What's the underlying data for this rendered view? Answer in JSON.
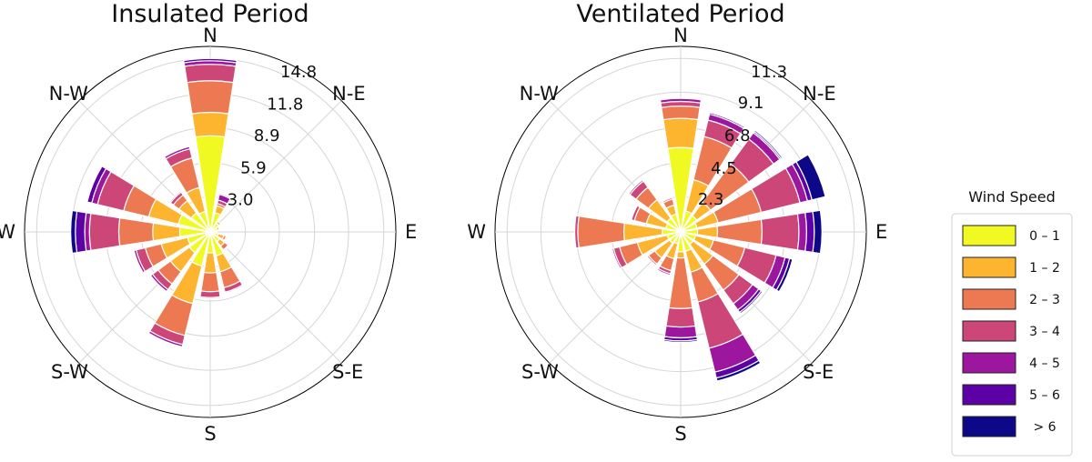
{
  "legend": {
    "title": "Wind Speed",
    "bins": [
      {
        "label": "0 – 1",
        "color": "#f0f921"
      },
      {
        "label": "1 – 2",
        "color": "#fdb42f"
      },
      {
        "label": "2 – 3",
        "color": "#ed7953"
      },
      {
        "label": "3 – 4",
        "color": "#cc4778"
      },
      {
        "label": "4 – 5",
        "color": "#9c179e"
      },
      {
        "label": "5 – 6",
        "color": "#5c01a6"
      },
      {
        "label": "> 6",
        "color": "#0d0887"
      }
    ]
  },
  "chart_data": [
    {
      "type": "windrose",
      "title": "Insulated Period",
      "directions": [
        "N",
        "N-E",
        "E",
        "S-E",
        "S",
        "S-W",
        "W",
        "N-W"
      ],
      "radial_ticks": [
        "3.0",
        "5.9",
        "8.9",
        "11.8",
        "14.8"
      ],
      "rmax": 14.8,
      "sectors": [
        {
          "direction": 0,
          "values": [
            8.2,
            2.0,
            2.7,
            1.4,
            0.3,
            0.2,
            0.0
          ]
        },
        {
          "direction": 22.5,
          "values": [
            1.7,
            0.6,
            0.2,
            0.3,
            0.5,
            0.1,
            0.0
          ]
        },
        {
          "direction": 45,
          "values": [
            0.9,
            0.2,
            0.0,
            0.0,
            0.0,
            0.0,
            0.0
          ]
        },
        {
          "direction": 67.5,
          "values": [
            0.6,
            0.2,
            0.0,
            0.0,
            0.0,
            0.0,
            0.0
          ]
        },
        {
          "direction": 90,
          "values": [
            0.5,
            0.1,
            0.0,
            0.0,
            0.0,
            0.0,
            0.0
          ]
        },
        {
          "direction": 112.5,
          "values": [
            0.7,
            0.5,
            0.2,
            0.0,
            0.0,
            0.0,
            0.0
          ]
        },
        {
          "direction": 135,
          "values": [
            1.0,
            0.5,
            0.4,
            0.1,
            0.0,
            0.0,
            0.0
          ]
        },
        {
          "direction": 157.5,
          "values": [
            2.1,
            1.4,
            1.4,
            0.4,
            0.1,
            0.0,
            0.0
          ]
        },
        {
          "direction": 180,
          "values": [
            1.8,
            1.7,
            1.6,
            0.5,
            0.1,
            0.0,
            0.0
          ]
        },
        {
          "direction": 202.5,
          "values": [
            3.0,
            3.3,
            2.8,
            0.8,
            0.2,
            0.0,
            0.0
          ]
        },
        {
          "direction": 225,
          "values": [
            2.2,
            2.0,
            1.3,
            0.6,
            0.2,
            0.0,
            0.0
          ]
        },
        {
          "direction": 247.5,
          "values": [
            2.0,
            2.3,
            1.4,
            0.8,
            0.2,
            0.0,
            0.0
          ]
        },
        {
          "direction": 270,
          "values": [
            2.6,
            2.3,
            2.9,
            2.5,
            0.4,
            0.8,
            0.4
          ]
        },
        {
          "direction": 292.5,
          "values": [
            2.8,
            2.6,
            2.2,
            2.3,
            0.5,
            0.4,
            0.0
          ]
        },
        {
          "direction": 315,
          "values": [
            2.0,
            1.3,
            0.6,
            0.3,
            0.1,
            0.0,
            0.0
          ]
        },
        {
          "direction": 337.5,
          "values": [
            1.8,
            2.1,
            2.6,
            0.8,
            0.2,
            0.0,
            0.0
          ]
        }
      ]
    },
    {
      "type": "windrose",
      "title": "Ventilated Period",
      "directions": [
        "N",
        "N-E",
        "E",
        "S-E",
        "S",
        "S-W",
        "W",
        "N-W"
      ],
      "radial_ticks": [
        "2.3",
        "4.5",
        "6.8",
        "9.1",
        "11.3"
      ],
      "rmax": 11.3,
      "sectors": [
        {
          "direction": 0,
          "values": [
            5.5,
            1.9,
            0.8,
            0.3,
            0.2,
            0.0,
            0.0
          ]
        },
        {
          "direction": 22.5,
          "values": [
            1.4,
            2.1,
            2.9,
            1.1,
            0.4,
            0.1,
            0.0
          ]
        },
        {
          "direction": 45,
          "values": [
            1.3,
            1.1,
            3.1,
            2.0,
            0.5,
            0.1,
            0.1
          ]
        },
        {
          "direction": 67.5,
          "values": [
            1.1,
            1.4,
            2.9,
            2.6,
            0.5,
            0.3,
            0.9
          ]
        },
        {
          "direction": 90,
          "values": [
            1.1,
            1.3,
            2.9,
            2.4,
            0.5,
            0.5,
            0.5
          ]
        },
        {
          "direction": 112.5,
          "values": [
            1.0,
            1.2,
            2.1,
            2.1,
            0.6,
            0.3,
            0.2
          ]
        },
        {
          "direction": 135,
          "values": [
            1.0,
            1.6,
            2.1,
            1.1,
            0.5,
            0.2,
            0.1
          ]
        },
        {
          "direction": 157.5,
          "values": [
            1.3,
            1.4,
            2.0,
            3.1,
            1.6,
            0.4,
            0.2
          ]
        },
        {
          "direction": 180,
          "values": [
            1.3,
            0.4,
            3.3,
            1.2,
            0.7,
            0.2,
            0.1
          ]
        },
        {
          "direction": 202.5,
          "values": [
            0.8,
            1.0,
            0.8,
            0.2,
            0.1,
            0.0,
            0.0
          ]
        },
        {
          "direction": 225,
          "values": [
            0.9,
            1.2,
            0.5,
            0.1,
            0.0,
            0.0,
            0.0
          ]
        },
        {
          "direction": 247.5,
          "values": [
            0.9,
            2.0,
            1.2,
            0.4,
            0.1,
            0.0,
            0.0
          ]
        },
        {
          "direction": 270,
          "values": [
            1.2,
            2.5,
            3.0,
            0.2,
            0.0,
            0.0,
            0.0
          ]
        },
        {
          "direction": 292.5,
          "values": [
            1.0,
            1.3,
            0.8,
            0.2,
            0.0,
            0.0,
            0.0
          ]
        },
        {
          "direction": 315,
          "values": [
            1.1,
            1.5,
            1.0,
            0.5,
            0.1,
            0.0,
            0.0
          ]
        },
        {
          "direction": 337.5,
          "values": [
            1.2,
            0.6,
            0.4,
            0.1,
            0.0,
            0.0,
            0.0
          ]
        }
      ]
    }
  ]
}
